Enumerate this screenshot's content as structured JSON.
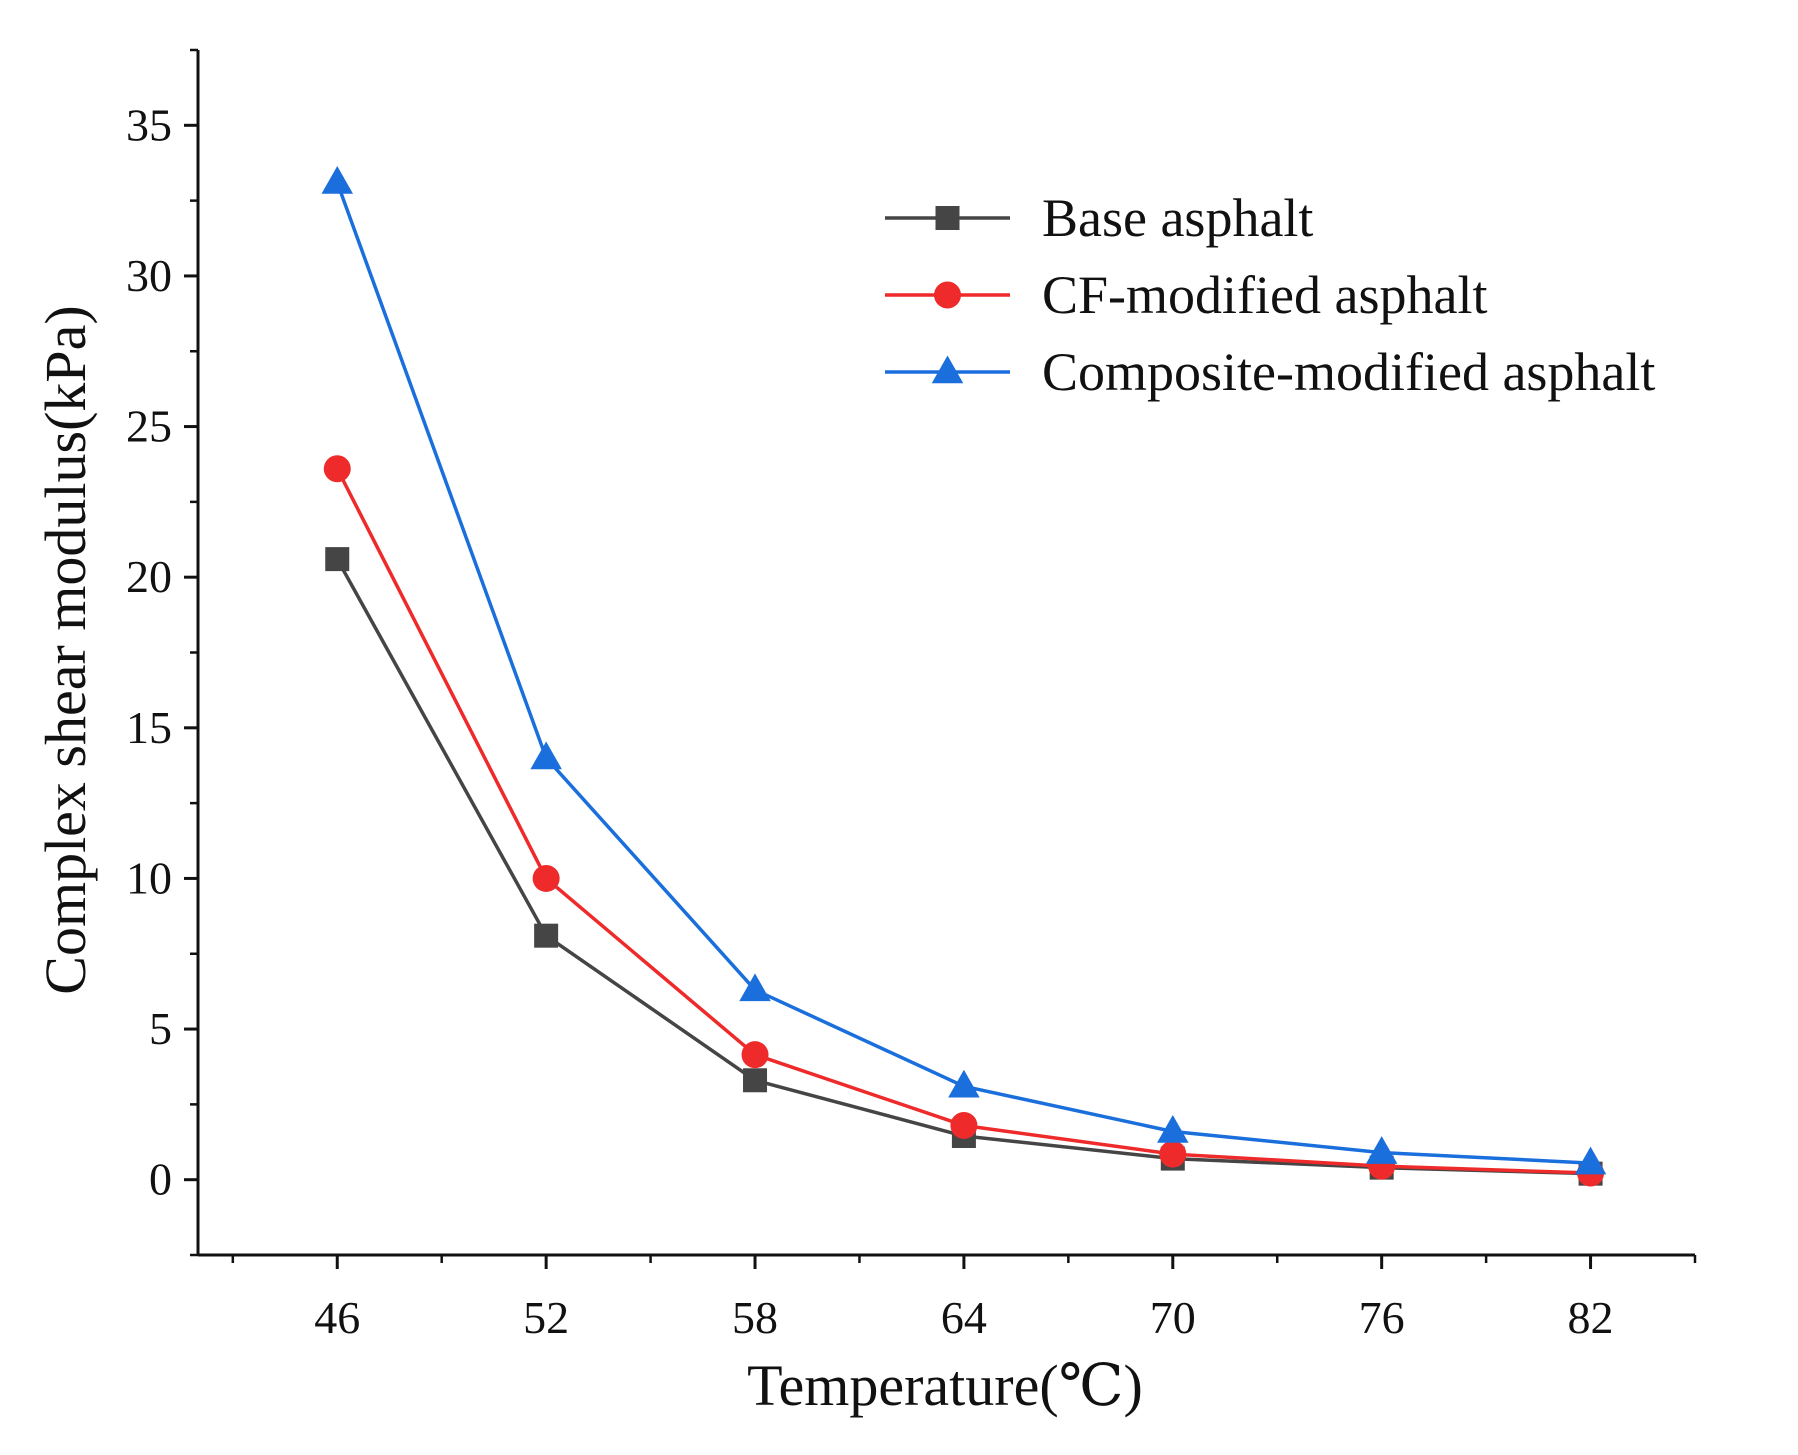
{
  "chart_data": {
    "type": "line",
    "title": "",
    "xlabel": "Temperature(℃)",
    "ylabel": "Complex shear modulus(kPa)",
    "x": [
      46,
      52,
      58,
      64,
      70,
      76,
      82
    ],
    "x_tick_labels": [
      "46",
      "52",
      "58",
      "64",
      "70",
      "76",
      "82"
    ],
    "xlim": [
      42,
      85
    ],
    "ylim": [
      -2.5,
      37.5
    ],
    "y_ticks": [
      0,
      5,
      10,
      15,
      20,
      25,
      30,
      35
    ],
    "y_tick_labels": [
      "0",
      "5",
      "10",
      "15",
      "20",
      "25",
      "30",
      "35"
    ],
    "grid": false,
    "legend_position": "top-right",
    "series": [
      {
        "name": "Base asphalt",
        "color": "#454545",
        "marker": "square",
        "values": [
          20.6,
          8.1,
          3.3,
          1.45,
          0.7,
          0.4,
          0.2
        ]
      },
      {
        "name": "CF-modified asphalt",
        "color": "#ee2a2a",
        "marker": "circle",
        "values": [
          23.6,
          10.0,
          4.15,
          1.8,
          0.85,
          0.45,
          0.22
        ]
      },
      {
        "name": "Composite-modified asphalt",
        "color": "#1a6fdc",
        "marker": "triangle",
        "values": [
          33.1,
          14.0,
          6.3,
          3.1,
          1.6,
          0.9,
          0.55
        ]
      }
    ]
  }
}
